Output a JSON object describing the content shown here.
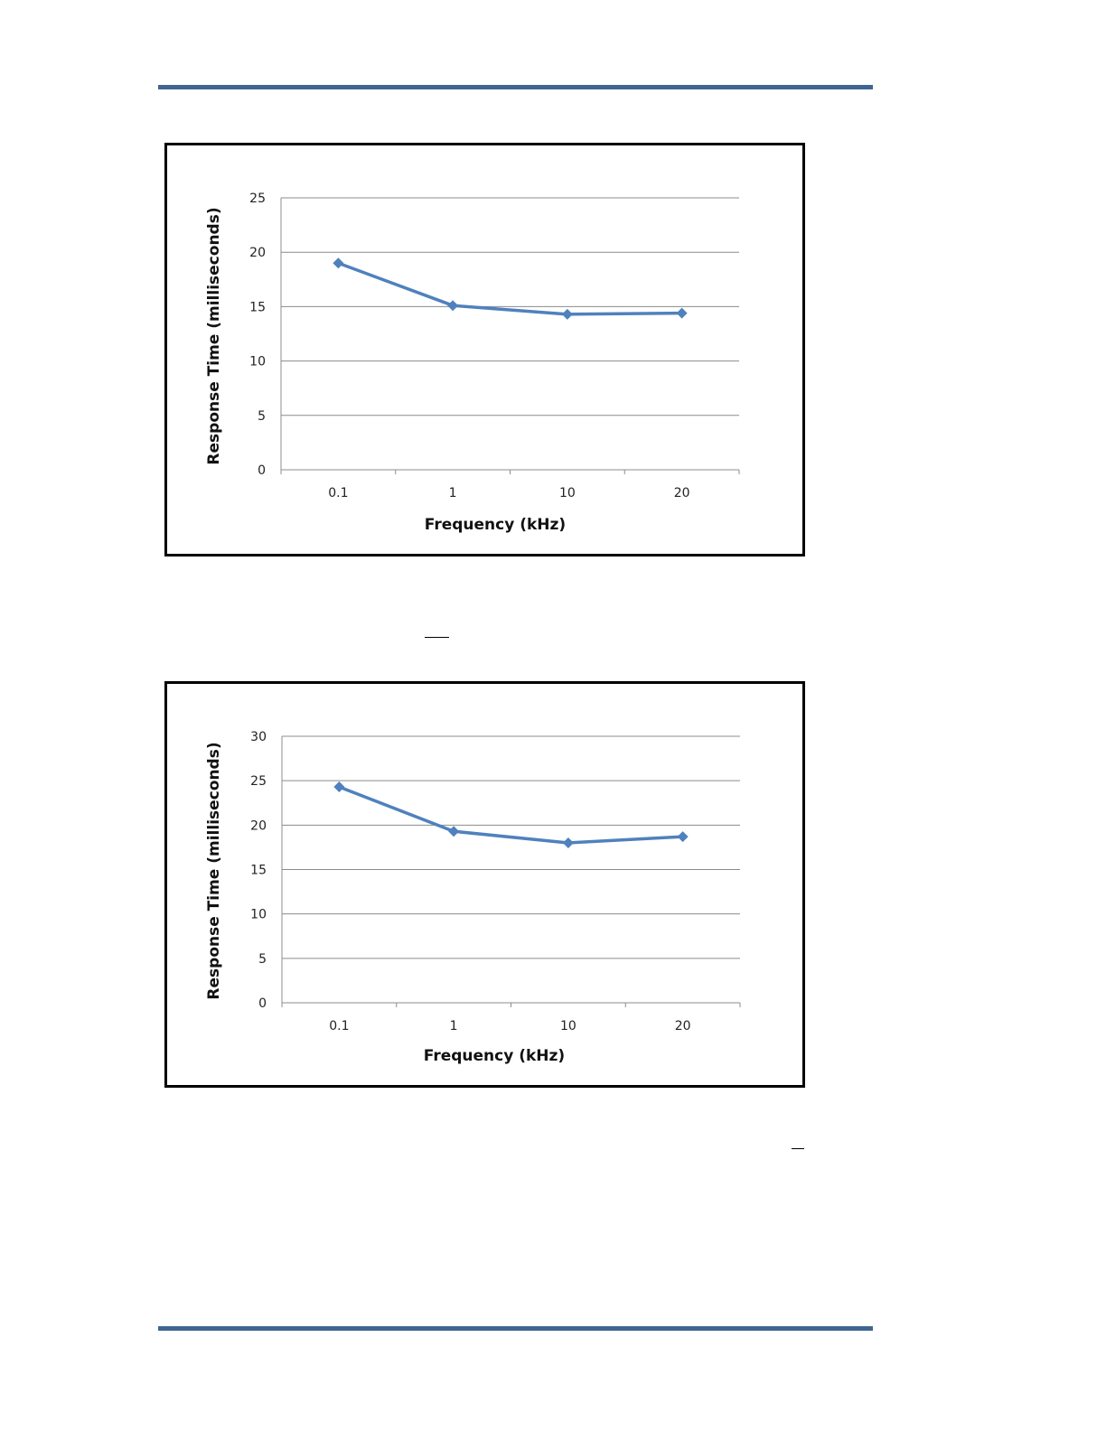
{
  "theme": {
    "rule_color": "#3f6690",
    "series_color": "#4f81bd",
    "grid_color": "#8c8c8c"
  },
  "chart_data": [
    {
      "type": "line",
      "categories": [
        "0.1",
        "1",
        "10",
        "20"
      ],
      "series": [
        {
          "values": [
            19.0,
            15.1,
            14.3,
            14.4
          ]
        }
      ],
      "xlabel": "Frequency (kHz)",
      "ylabel": "Response Time (milliseconds)",
      "ylim": [
        0,
        25
      ],
      "yticks": [
        "0",
        "5",
        "10",
        "15",
        "20",
        "25"
      ],
      "grid": true,
      "marker": "diamond-icon"
    },
    {
      "type": "line",
      "categories": [
        "0.1",
        "1",
        "10",
        "20"
      ],
      "series": [
        {
          "values": [
            24.3,
            19.3,
            18.0,
            18.7
          ]
        }
      ],
      "xlabel": "Frequency (kHz)",
      "ylabel": "Response Time (milliseconds)",
      "ylim": [
        0,
        30
      ],
      "yticks": [
        "0",
        "5",
        "10",
        "15",
        "20",
        "25",
        "30"
      ],
      "grid": true,
      "marker": "diamond-icon"
    }
  ]
}
